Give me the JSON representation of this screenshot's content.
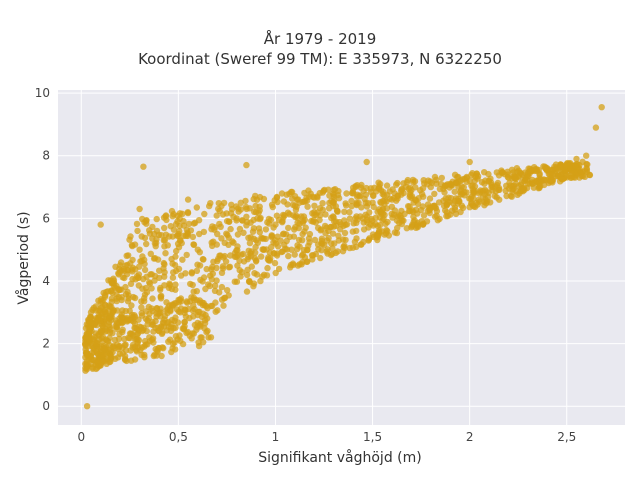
{
  "chart_data": {
    "type": "scatter",
    "title": "År 1979 - 2019",
    "subtitle": "Koordinat (Sweref 99 TM): E 335973, N 6322250",
    "xlabel": "Signifikant våghöjd (m)",
    "ylabel": "Vågperiod (s)",
    "xlim": [
      -0.12,
      2.8
    ],
    "ylim": [
      -0.6,
      10.1
    ],
    "xticks": [
      0,
      0.5,
      1,
      1.5,
      2,
      2.5
    ],
    "xtick_labels": [
      "0",
      "0,5",
      "1",
      "1,5",
      "2",
      "2,5"
    ],
    "yticks": [
      0,
      2,
      4,
      6,
      8,
      10
    ],
    "ytick_labels": [
      "0",
      "2",
      "4",
      "6",
      "8",
      "10"
    ],
    "grid": true,
    "marker_color": "#D4A017",
    "background": "#E9E9F0",
    "points_sample": {
      "x": [
        0.03,
        0.05,
        0.08,
        0.05,
        0.1,
        0.15,
        0.2,
        0.1,
        0.3,
        0.35,
        0.4,
        0.3,
        0.5,
        0.6,
        0.55,
        0.7,
        0.8,
        0.9,
        1.0,
        1.1,
        1.2,
        1.3,
        1.4,
        1.5,
        1.6,
        1.7,
        1.8,
        1.9,
        2.0,
        2.1,
        2.2,
        2.3,
        2.4,
        2.5,
        2.55,
        2.6,
        2.65,
        2.68,
        0.32,
        0.85,
        1.47,
        2.0
      ],
      "y": [
        0.0,
        1.5,
        2.0,
        3.0,
        1.3,
        1.5,
        4.5,
        5.8,
        6.3,
        2.2,
        2.4,
        5.0,
        5.5,
        5.0,
        6.6,
        5.5,
        6.0,
        6.2,
        5.8,
        6.4,
        6.2,
        6.5,
        6.8,
        6.5,
        6.6,
        6.9,
        7.0,
        7.1,
        7.2,
        7.2,
        7.3,
        7.4,
        7.6,
        7.7,
        7.9,
        8.0,
        8.9,
        9.55,
        7.65,
        7.7,
        7.8,
        7.8
      ]
    }
  }
}
